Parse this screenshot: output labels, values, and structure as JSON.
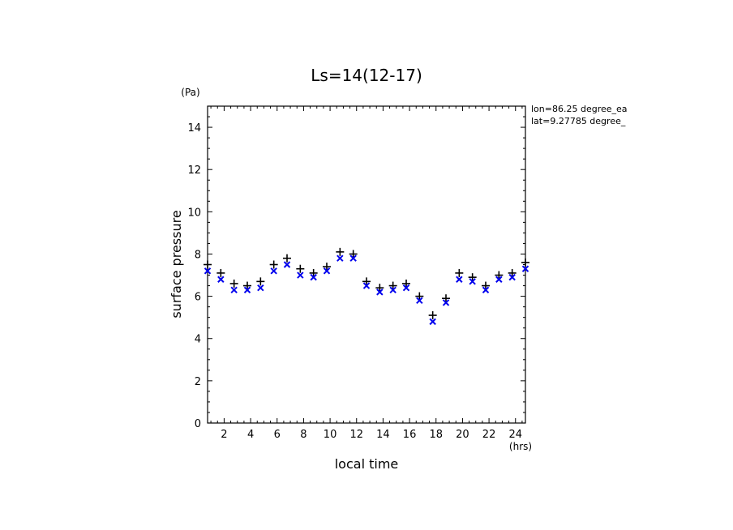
{
  "chart_data": {
    "type": "scatter",
    "title": "Ls=14(12-17)",
    "xlabel": "local time",
    "ylabel": "surface pressure",
    "x_unit": "(hrs)",
    "y_unit": "(Pa)",
    "xlim": [
      0.75,
      24.75
    ],
    "ylim": [
      0,
      15
    ],
    "x_ticks": [
      2,
      4,
      6,
      8,
      10,
      12,
      14,
      16,
      18,
      20,
      22,
      24
    ],
    "y_ticks": [
      0,
      2,
      4,
      6,
      8,
      10,
      12,
      14
    ],
    "annotations": [
      "lon=86.25 degree_ea",
      "lat=9.27785 degree_"
    ],
    "series": [
      {
        "marker": "+",
        "color": "#000000",
        "x": [
          0.75,
          1.75,
          2.75,
          3.75,
          4.75,
          5.75,
          6.75,
          7.75,
          8.75,
          9.75,
          10.75,
          11.75,
          12.75,
          13.75,
          14.75,
          15.75,
          16.75,
          17.75,
          18.75,
          19.75,
          20.75,
          21.75,
          22.75,
          23.75,
          24.75
        ],
        "values": [
          7.5,
          7.1,
          6.6,
          6.5,
          6.7,
          7.5,
          7.8,
          7.3,
          7.1,
          7.4,
          8.1,
          8.0,
          6.7,
          6.4,
          6.5,
          6.6,
          6.0,
          5.1,
          5.9,
          7.1,
          6.9,
          6.5,
          7.0,
          7.1,
          7.6
        ]
      },
      {
        "marker": "x",
        "color": "#0000ee",
        "x": [
          0.75,
          1.75,
          2.75,
          3.75,
          4.75,
          5.75,
          6.75,
          7.75,
          8.75,
          9.75,
          10.75,
          11.75,
          12.75,
          13.75,
          14.75,
          15.75,
          16.75,
          17.75,
          18.75,
          19.75,
          20.75,
          21.75,
          22.75,
          23.75,
          24.75
        ],
        "values": [
          7.2,
          6.8,
          6.3,
          6.3,
          6.4,
          7.2,
          7.5,
          7.0,
          6.9,
          7.2,
          7.8,
          7.8,
          6.5,
          6.2,
          6.3,
          6.4,
          5.8,
          4.8,
          5.7,
          6.8,
          6.7,
          6.3,
          6.8,
          6.9,
          7.3
        ]
      }
    ]
  }
}
